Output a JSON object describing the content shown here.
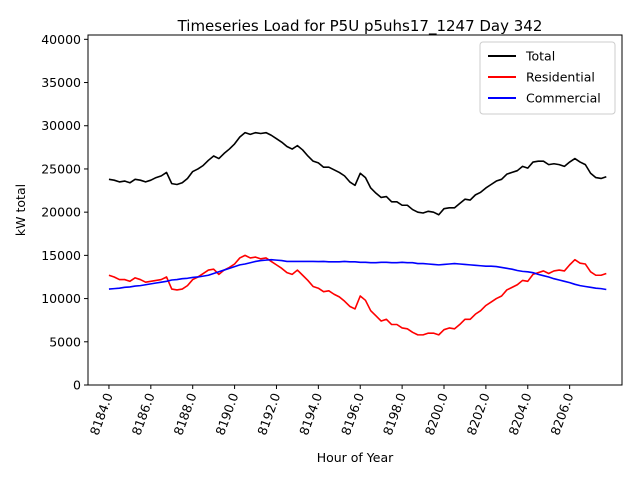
{
  "chart_data": {
    "type": "line",
    "title": "Timeseries Load for P5U p5uhs17_1247  Day 342",
    "xlabel": "Hour of Year",
    "ylabel": "kW total",
    "xlim": [
      8183.0,
      8208.5
    ],
    "ylim": [
      0,
      40500
    ],
    "xticks": [
      8184,
      8186,
      8188,
      8190,
      8192,
      8194,
      8196,
      8198,
      8200,
      8202,
      8204,
      8206
    ],
    "xtick_labels": [
      "8184.0",
      "8186.0",
      "8188.0",
      "8190.0",
      "8192.0",
      "8194.0",
      "8196.0",
      "8198.0",
      "8200.0",
      "8202.0",
      "8204.0",
      "8206.0"
    ],
    "yticks": [
      0,
      5000,
      10000,
      15000,
      20000,
      25000,
      30000,
      35000,
      40000
    ],
    "ytick_labels": [
      "0",
      "5000",
      "10000",
      "15000",
      "20000",
      "25000",
      "30000",
      "35000",
      "40000"
    ],
    "legend_position": "top-right",
    "x_start": 8184.0,
    "x_step": 0.25,
    "series": [
      {
        "name": "Total",
        "color": "#000000",
        "values": [
          23800,
          23700,
          23500,
          23600,
          23400,
          23800,
          23700,
          23500,
          23700,
          24000,
          24200,
          24600,
          23300,
          23200,
          23400,
          23900,
          24700,
          25000,
          25400,
          26000,
          26500,
          26200,
          26800,
          27300,
          27900,
          28700,
          29200,
          29000,
          29200,
          29100,
          29200,
          28900,
          28500,
          28100,
          27600,
          27300,
          27700,
          27200,
          26500,
          25900,
          25700,
          25200,
          25200,
          24900,
          24600,
          24200,
          23500,
          23100,
          24500,
          24000,
          22800,
          22200,
          21700,
          21800,
          21200,
          21200,
          20800,
          20800,
          20300,
          20000,
          19900,
          20100,
          20000,
          19700,
          20400,
          20500,
          20500,
          21000,
          21500,
          21400,
          22000,
          22300,
          22800,
          23200,
          23600,
          23800,
          24400,
          24600,
          24800,
          25300,
          25100,
          25800,
          25900,
          25900,
          25500,
          25600,
          25500,
          25300,
          25800,
          26200,
          25800,
          25500,
          24500,
          24000,
          23900,
          24100
        ]
      },
      {
        "name": "Residential",
        "color": "#ff0000",
        "values": [
          12700,
          12500,
          12200,
          12200,
          12000,
          12400,
          12200,
          11900,
          12000,
          12100,
          12200,
          12500,
          11100,
          11000,
          11100,
          11500,
          12200,
          12500,
          12900,
          13300,
          13400,
          12800,
          13300,
          13600,
          14000,
          14700,
          15000,
          14700,
          14800,
          14600,
          14700,
          14300,
          13900,
          13500,
          13000,
          12800,
          13300,
          12700,
          12100,
          11400,
          11200,
          10800,
          10900,
          10500,
          10200,
          9700,
          9100,
          8800,
          10300,
          9800,
          8600,
          8000,
          7400,
          7600,
          7000,
          7000,
          6600,
          6500,
          6100,
          5800,
          5800,
          6000,
          6000,
          5800,
          6400,
          6600,
          6500,
          7000,
          7600,
          7600,
          8200,
          8600,
          9200,
          9600,
          10000,
          10300,
          11000,
          11300,
          11600,
          12100,
          12000,
          12800,
          13000,
          13200,
          12900,
          13200,
          13300,
          13200,
          13900,
          14500,
          14100,
          14000,
          13100,
          12700,
          12700,
          12900
        ]
      },
      {
        "name": "Commercial",
        "color": "#0000ff",
        "values": [
          11100,
          11150,
          11200,
          11300,
          11350,
          11450,
          11500,
          11600,
          11700,
          11800,
          11900,
          12000,
          12150,
          12200,
          12300,
          12350,
          12450,
          12500,
          12600,
          12700,
          12900,
          13100,
          13300,
          13500,
          13700,
          13900,
          14000,
          14150,
          14300,
          14400,
          14450,
          14500,
          14450,
          14400,
          14300,
          14300,
          14300,
          14300,
          14300,
          14300,
          14280,
          14300,
          14250,
          14250,
          14250,
          14300,
          14250,
          14250,
          14200,
          14200,
          14150,
          14150,
          14200,
          14200,
          14150,
          14150,
          14200,
          14150,
          14150,
          14050,
          14050,
          14000,
          13950,
          13900,
          13950,
          14000,
          14050,
          14000,
          13950,
          13900,
          13850,
          13800,
          13750,
          13750,
          13700,
          13600,
          13500,
          13400,
          13250,
          13150,
          13100,
          13000,
          12800,
          12650,
          12500,
          12300,
          12150,
          12000,
          11850,
          11650,
          11500,
          11400,
          11300,
          11200,
          11150,
          11050
        ]
      }
    ]
  }
}
